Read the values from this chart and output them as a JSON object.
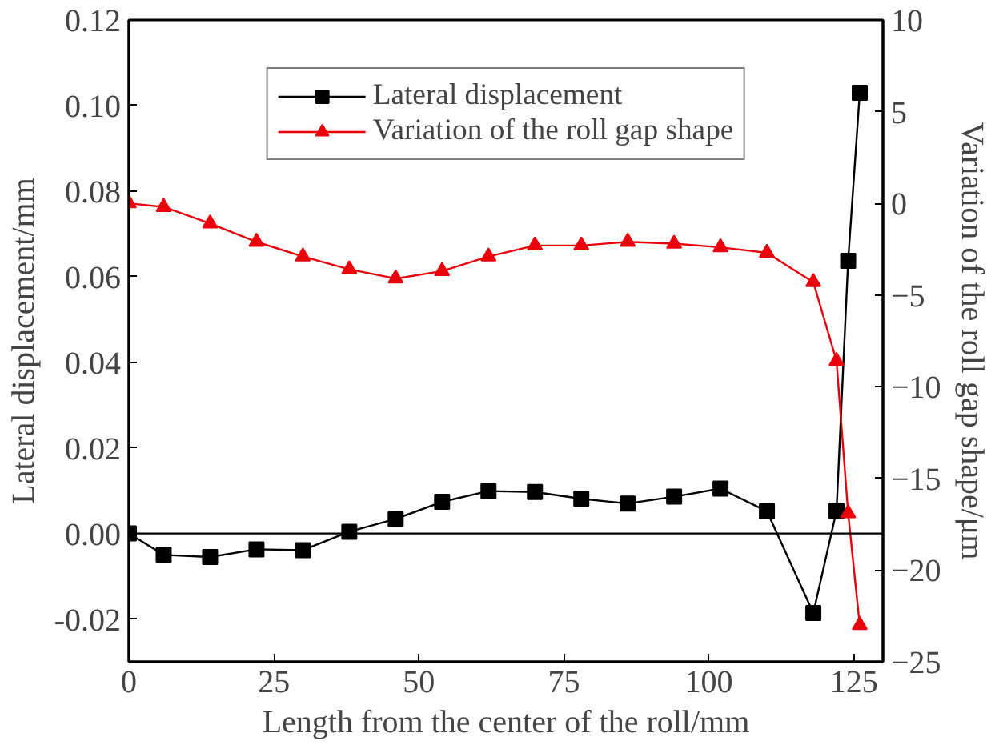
{
  "chart_data": {
    "type": "line",
    "xlabel": "Length from the center of the roll/mm",
    "ylabel": "Lateral displacement/mm",
    "y2label": "Variation of the roll gap shape/μm",
    "x": [
      0,
      6,
      14,
      22,
      30,
      38,
      46,
      54,
      62,
      70,
      78,
      86,
      94,
      102,
      110,
      118,
      122,
      124,
      126
    ],
    "series": [
      {
        "name": "Lateral displacement",
        "color": "#000000",
        "marker": "square",
        "values": [
          0,
          -0.005,
          -0.0055,
          -0.0037,
          -0.0039,
          0.0004,
          0.0034,
          0.0074,
          0.0099,
          0.0097,
          0.0081,
          0.007,
          0.0086,
          0.0105,
          0.0052,
          -0.0186,
          0.0053,
          0.0637,
          0.103
        ]
      },
      {
        "name": "Variation of the roll gap shape",
        "color": "#e8000b",
        "marker": "triangle",
        "axis": "y2",
        "values": [
          0.0,
          -0.2,
          -1.1,
          -2.1,
          -2.9,
          -3.6,
          -4.1,
          -3.7,
          -2.9,
          -2.3,
          -2.3,
          -2.1,
          -2.2,
          -2.4,
          -2.7,
          -4.3,
          -8.6,
          -16.9,
          -23.0
        ]
      }
    ],
    "xlim": [
      0,
      130
    ],
    "xticks": [
      0,
      25,
      50,
      75,
      100,
      125
    ],
    "ylim": [
      -0.03,
      0.12
    ],
    "yticks": [
      {
        "value": -0.02,
        "label": "-0.02"
      },
      {
        "value": 0,
        "label": "0.00"
      },
      {
        "value": 0.02,
        "label": "0.02"
      },
      {
        "value": 0.04,
        "label": "0.04"
      },
      {
        "value": 0.06,
        "label": "0.06"
      },
      {
        "value": 0.08,
        "label": "0.08"
      },
      {
        "value": 0.1,
        "label": "0.10"
      },
      {
        "value": 0.12,
        "label": "0.12"
      }
    ],
    "y2lim": [
      -25,
      10
    ],
    "y2ticks": [
      -25,
      -20,
      -15,
      -10,
      -5,
      0,
      5,
      10
    ],
    "ref_lines": [
      {
        "axis": "y",
        "value": 0,
        "color": "#000000"
      }
    ],
    "grid": false,
    "legend": "top"
  }
}
